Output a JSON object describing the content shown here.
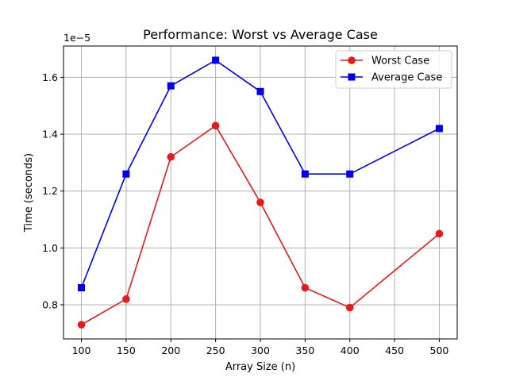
{
  "chart_data": {
    "type": "line",
    "title": "Performance: Worst vs Average Case",
    "xlabel": "Array Size (n)",
    "ylabel": "Time (seconds)",
    "y_offset_label": "1e−5",
    "x": [
      100,
      150,
      200,
      250,
      300,
      350,
      400,
      500
    ],
    "xlim": [
      80,
      520
    ],
    "ylim": [
      0.68,
      1.71
    ],
    "xticks": [
      100,
      150,
      200,
      250,
      300,
      350,
      400,
      450,
      500
    ],
    "yticks": [
      0.8,
      1.0,
      1.2,
      1.4,
      1.6
    ],
    "grid": true,
    "legend_position": "top-right",
    "series": [
      {
        "name": "Worst Case",
        "color": "#e41a1c",
        "marker": "circle",
        "values": [
          0.73,
          0.82,
          1.32,
          1.43,
          1.16,
          0.86,
          0.79,
          1.05
        ]
      },
      {
        "name": "Average Case",
        "color": "#0000ee",
        "marker": "square",
        "values": [
          0.86,
          1.26,
          1.57,
          1.66,
          1.55,
          1.26,
          1.26,
          1.42
        ]
      }
    ]
  }
}
